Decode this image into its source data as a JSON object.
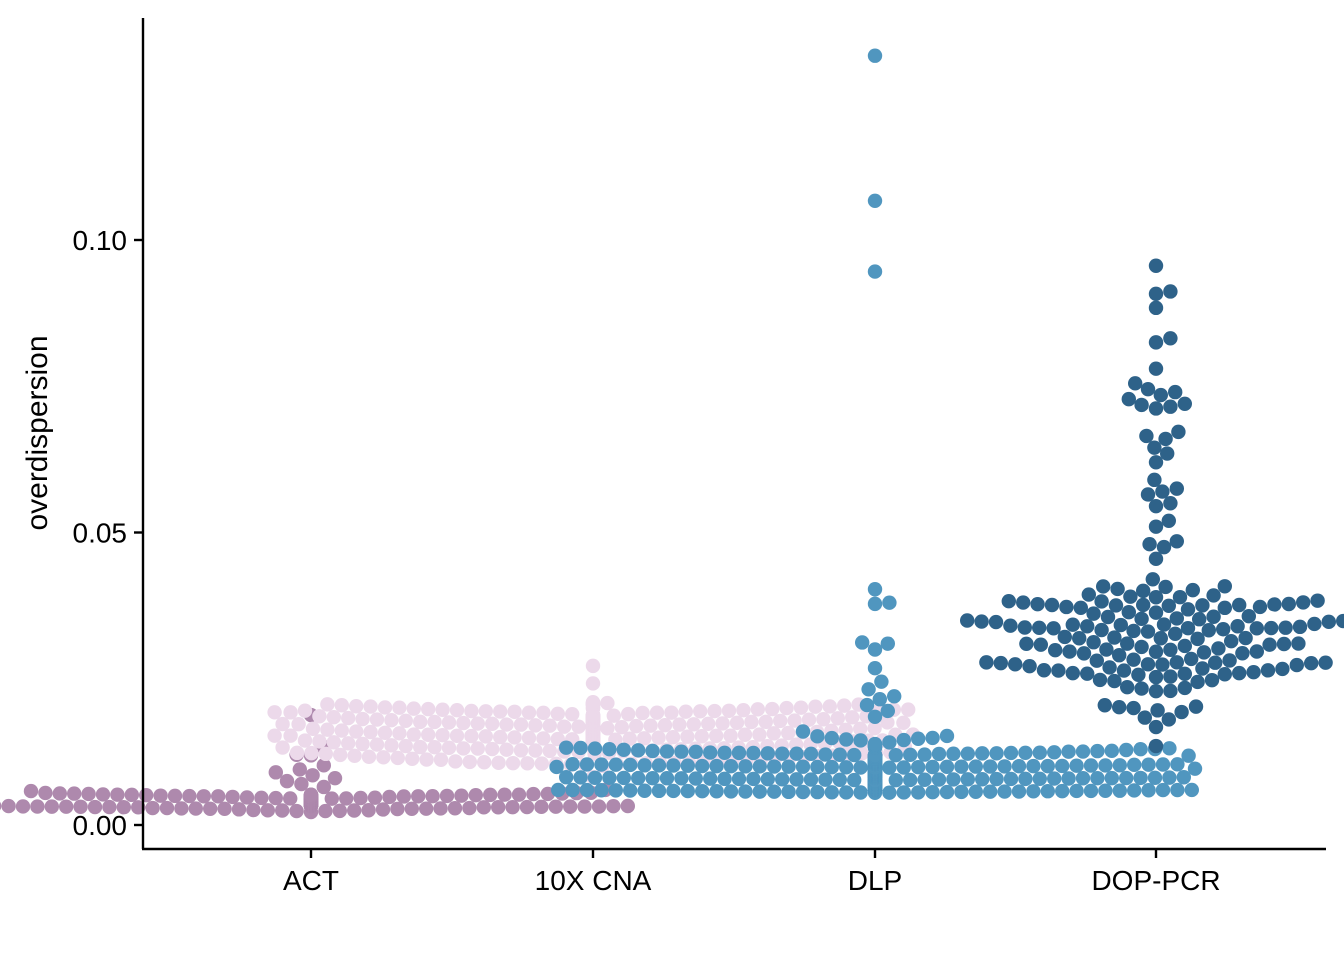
{
  "chart_data": {
    "type": "scatter",
    "subtype": "beeswarm",
    "title": "",
    "xlabel": "",
    "ylabel": "overdispersion",
    "ylim": [
      -0.004,
      0.138
    ],
    "yticks": [
      0.0,
      0.05,
      0.1
    ],
    "ytick_labels": [
      "0.00",
      "0.05",
      "0.10"
    ],
    "grid": false,
    "legend": "none",
    "categories": [
      "ACT",
      "10X CNA",
      "DLP",
      "DOP-PCR"
    ],
    "series": [
      {
        "category": "ACT",
        "color": "#ae89ad",
        "n_points": 320,
        "highlight_values": [
          0.0188,
          0.0135,
          0.012,
          0.0119,
          0.0102,
          0.0095,
          0.009,
          0.0085,
          0.008,
          0.0075,
          0.007,
          0.0065,
          0.006,
          0.0058,
          0.0055
        ],
        "bulk_range": [
          0.0022,
          0.0055
        ],
        "bulk_center": 0.004
      },
      {
        "category": "10X CNA",
        "color": "#ecd9ea",
        "n_points": 420,
        "highlight_values": [
          0.0272,
          0.0242,
          0.0082
        ],
        "bulk_range": [
          0.01,
          0.021
        ],
        "bulk_center": 0.016
      },
      {
        "category": "DLP",
        "color": "#5096bf",
        "n_points": 640,
        "highlight_values": [
          0.1315,
          0.1067,
          0.0946,
          0.0403,
          0.038,
          0.0378,
          0.0312,
          0.031,
          0.03,
          0.0268,
          0.0245,
          0.0232,
          0.022,
          0.0215,
          0.0205,
          0.0195,
          0.0185
        ],
        "bulk_range": [
          0.0055,
          0.016
        ],
        "bulk_center": 0.0085
      },
      {
        "category": "DOP-PCR",
        "color": "#2e6289",
        "n_points": 178,
        "highlight_values": [
          0.0956,
          0.0912,
          0.0908,
          0.0884,
          0.0832,
          0.0825,
          0.078,
          0.0755,
          0.0745,
          0.074,
          0.0735,
          0.0728,
          0.072,
          0.0718,
          0.0715,
          0.0712,
          0.0672,
          0.0665,
          0.066,
          0.0645,
          0.0635,
          0.062,
          0.059,
          0.0575,
          0.057,
          0.0565,
          0.055,
          0.0545,
          0.052,
          0.051,
          0.0485,
          0.048,
          0.0475,
          0.0455,
          0.042,
          0.0135
        ],
        "bulk_range": [
          0.016,
          0.041
        ],
        "bulk_center": 0.0315
      }
    ]
  }
}
